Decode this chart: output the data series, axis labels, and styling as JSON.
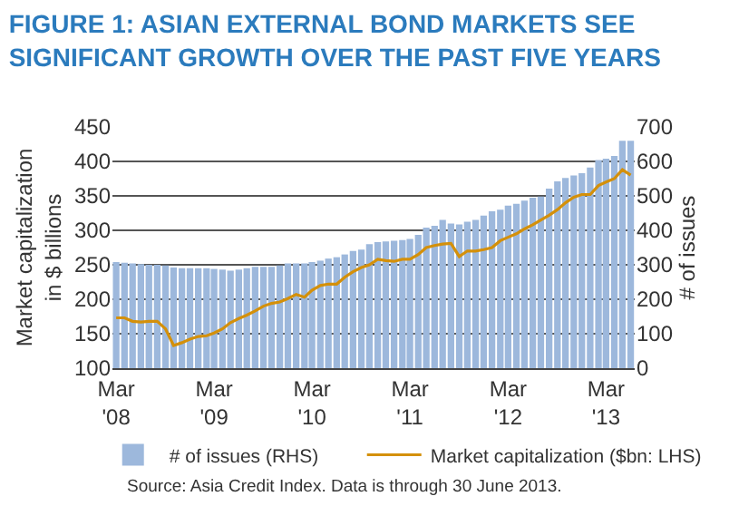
{
  "chart_data": {
    "type": "bar",
    "title": "FIGURE 1: ASIAN EXTERNAL BOND MARKETS SEE\nSIGNIFICANT GROWTH OVER THE PAST FIVE YEARS",
    "ylabel": "Market capitalization\nin $ billions",
    "y2label": "# of issues",
    "x": [
      "2008-03",
      "2008-04",
      "2008-05",
      "2008-06",
      "2008-07",
      "2008-08",
      "2008-09",
      "2008-10",
      "2008-11",
      "2008-12",
      "2009-01",
      "2009-02",
      "2009-03",
      "2009-04",
      "2009-05",
      "2009-06",
      "2009-07",
      "2009-08",
      "2009-09",
      "2009-10",
      "2009-11",
      "2009-12",
      "2010-01",
      "2010-02",
      "2010-03",
      "2010-04",
      "2010-05",
      "2010-06",
      "2010-07",
      "2010-08",
      "2010-09",
      "2010-10",
      "2010-11",
      "2010-12",
      "2011-01",
      "2011-02",
      "2011-03",
      "2011-04",
      "2011-05",
      "2011-06",
      "2011-07",
      "2011-08",
      "2011-09",
      "2011-10",
      "2011-11",
      "2011-12",
      "2012-01",
      "2012-02",
      "2012-03",
      "2012-04",
      "2012-05",
      "2012-06",
      "2012-07",
      "2012-08",
      "2012-09",
      "2012-10",
      "2012-11",
      "2012-12",
      "2013-01",
      "2013-02",
      "2013-03",
      "2013-04",
      "2013-05",
      "2013-06"
    ],
    "series": [
      {
        "name": "# of issues (RHS)",
        "axis": "y2",
        "color": "#9db8dc",
        "values": [
          308,
          306,
          304,
          302,
          300,
          300,
          298,
          292,
          290,
          290,
          290,
          290,
          288,
          286,
          283,
          286,
          290,
          294,
          294,
          294,
          298,
          304,
          304,
          304,
          308,
          312,
          318,
          322,
          330,
          340,
          344,
          360,
          366,
          368,
          370,
          372,
          375,
          387,
          408,
          413,
          430,
          420,
          417,
          425,
          430,
          443,
          455,
          460,
          472,
          477,
          486,
          495,
          498,
          521,
          542,
          552,
          559,
          566,
          582,
          604,
          608,
          616,
          660,
          660
        ]
      },
      {
        "name": "Market capitalization ($bn: LHS)",
        "type": "line",
        "axis": "y",
        "color": "#d4900a",
        "values": [
          173,
          173,
          168,
          167,
          168,
          168,
          157,
          133,
          137,
          142,
          146,
          147,
          151,
          157,
          166,
          172,
          177,
          183,
          190,
          194,
          196,
          201,
          207,
          203,
          213,
          220,
          222,
          222,
          232,
          240,
          246,
          250,
          258,
          256,
          255,
          258,
          258,
          265,
          275,
          278,
          280,
          281,
          262,
          270,
          270,
          272,
          275,
          285,
          290,
          295,
          302,
          308,
          315,
          322,
          330,
          340,
          348,
          352,
          352,
          365,
          370,
          375,
          388,
          380
        ]
      }
    ],
    "xlim": [
      "2008-02-16",
      "2013-06-16"
    ],
    "xticks": [
      {
        "value": "2008-03",
        "label": "Mar\n'08"
      },
      {
        "value": "2009-03",
        "label": "Mar\n'09"
      },
      {
        "value": "2010-03",
        "label": "Mar\n'10"
      },
      {
        "value": "2011-03",
        "label": "Mar\n'11"
      },
      {
        "value": "2012-03",
        "label": "Mar\n'12"
      },
      {
        "value": "2013-03",
        "label": "Mar\n'13"
      }
    ],
    "ylim": [
      100,
      450
    ],
    "yticks": [
      100,
      150,
      200,
      250,
      300,
      350,
      400,
      450
    ],
    "y2lim": [
      0,
      700
    ],
    "y2ticks": [
      0,
      100,
      200,
      300,
      400,
      500,
      600,
      700
    ],
    "grid": "y",
    "legend": "bottom",
    "marker": "none",
    "line_style": "solid",
    "annotations": [
      "Source: Asia Credit Index. Data is through 30 June 2013."
    ]
  }
}
